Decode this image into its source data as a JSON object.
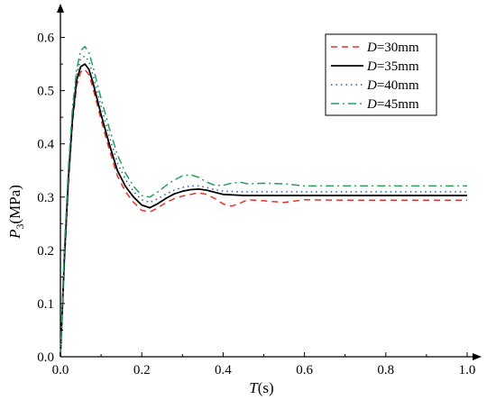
{
  "chart_data": {
    "type": "line",
    "xlabel": {
      "var": "T",
      "unit": "(s)"
    },
    "ylabel": {
      "var": "P",
      "sub": "3",
      "unit": "(MPa)"
    },
    "xlim": [
      0,
      1.0
    ],
    "ylim": [
      0,
      0.65
    ],
    "x_ticks": [
      "0.0",
      "0.2",
      "0.4",
      "0.6",
      "0.8",
      "1.0"
    ],
    "y_ticks": [
      "0.0",
      "0.1",
      "0.2",
      "0.3",
      "0.4",
      "0.5",
      "0.6"
    ],
    "grid": false,
    "legend_position": "top-right",
    "series": [
      {
        "name_var": "D",
        "name_val": "=30mm",
        "color": "#e8312a",
        "dash": "7,5",
        "points": [
          [
            0,
            0
          ],
          [
            0.01,
            0.18
          ],
          [
            0.02,
            0.33
          ],
          [
            0.03,
            0.44
          ],
          [
            0.04,
            0.51
          ],
          [
            0.05,
            0.535
          ],
          [
            0.06,
            0.54
          ],
          [
            0.07,
            0.53
          ],
          [
            0.08,
            0.505
          ],
          [
            0.1,
            0.445
          ],
          [
            0.12,
            0.39
          ],
          [
            0.14,
            0.34
          ],
          [
            0.16,
            0.31
          ],
          [
            0.18,
            0.29
          ],
          [
            0.2,
            0.275
          ],
          [
            0.22,
            0.272
          ],
          [
            0.24,
            0.28
          ],
          [
            0.26,
            0.29
          ],
          [
            0.28,
            0.297
          ],
          [
            0.3,
            0.302
          ],
          [
            0.32,
            0.305
          ],
          [
            0.34,
            0.308
          ],
          [
            0.36,
            0.305
          ],
          [
            0.38,
            0.297
          ],
          [
            0.4,
            0.287
          ],
          [
            0.42,
            0.283
          ],
          [
            0.44,
            0.288
          ],
          [
            0.46,
            0.295
          ],
          [
            0.5,
            0.293
          ],
          [
            0.55,
            0.29
          ],
          [
            0.6,
            0.295
          ],
          [
            0.7,
            0.294
          ],
          [
            0.8,
            0.294
          ],
          [
            0.9,
            0.294
          ],
          [
            1.0,
            0.294
          ]
        ]
      },
      {
        "name_var": "D",
        "name_val": "=35mm",
        "color": "#000000",
        "dash": "",
        "points": [
          [
            0,
            0
          ],
          [
            0.01,
            0.19
          ],
          [
            0.02,
            0.34
          ],
          [
            0.03,
            0.45
          ],
          [
            0.04,
            0.52
          ],
          [
            0.05,
            0.545
          ],
          [
            0.06,
            0.55
          ],
          [
            0.07,
            0.54
          ],
          [
            0.08,
            0.515
          ],
          [
            0.1,
            0.455
          ],
          [
            0.12,
            0.4
          ],
          [
            0.14,
            0.35
          ],
          [
            0.16,
            0.32
          ],
          [
            0.18,
            0.3
          ],
          [
            0.2,
            0.285
          ],
          [
            0.22,
            0.28
          ],
          [
            0.24,
            0.288
          ],
          [
            0.26,
            0.298
          ],
          [
            0.28,
            0.306
          ],
          [
            0.3,
            0.311
          ],
          [
            0.32,
            0.314
          ],
          [
            0.34,
            0.315
          ],
          [
            0.36,
            0.313
          ],
          [
            0.38,
            0.309
          ],
          [
            0.4,
            0.305
          ],
          [
            0.45,
            0.303
          ],
          [
            0.5,
            0.303
          ],
          [
            0.6,
            0.303
          ],
          [
            0.7,
            0.303
          ],
          [
            0.8,
            0.303
          ],
          [
            0.9,
            0.303
          ],
          [
            1.0,
            0.303
          ]
        ]
      },
      {
        "name_var": "D",
        "name_val": "=40mm",
        "color": "#1f5fb5",
        "dash": "1.5,4",
        "points": [
          [
            0,
            0
          ],
          [
            0.01,
            0.2
          ],
          [
            0.02,
            0.35
          ],
          [
            0.03,
            0.46
          ],
          [
            0.04,
            0.53
          ],
          [
            0.05,
            0.56
          ],
          [
            0.06,
            0.565
          ],
          [
            0.07,
            0.555
          ],
          [
            0.08,
            0.53
          ],
          [
            0.1,
            0.47
          ],
          [
            0.12,
            0.415
          ],
          [
            0.14,
            0.365
          ],
          [
            0.16,
            0.333
          ],
          [
            0.18,
            0.31
          ],
          [
            0.2,
            0.295
          ],
          [
            0.22,
            0.29
          ],
          [
            0.24,
            0.297
          ],
          [
            0.26,
            0.306
          ],
          [
            0.28,
            0.313
          ],
          [
            0.3,
            0.318
          ],
          [
            0.32,
            0.321
          ],
          [
            0.34,
            0.321
          ],
          [
            0.36,
            0.318
          ],
          [
            0.38,
            0.314
          ],
          [
            0.4,
            0.311
          ],
          [
            0.45,
            0.31
          ],
          [
            0.5,
            0.31
          ],
          [
            0.6,
            0.31
          ],
          [
            0.7,
            0.31
          ],
          [
            0.8,
            0.31
          ],
          [
            0.9,
            0.31
          ],
          [
            1.0,
            0.31
          ]
        ]
      },
      {
        "name_var": "D",
        "name_val": "=45mm",
        "color": "#2a9d5c",
        "dash": "9,4,2,4",
        "points": [
          [
            0,
            0
          ],
          [
            0.01,
            0.21
          ],
          [
            0.02,
            0.36
          ],
          [
            0.03,
            0.47
          ],
          [
            0.04,
            0.54
          ],
          [
            0.05,
            0.575
          ],
          [
            0.06,
            0.583
          ],
          [
            0.07,
            0.572
          ],
          [
            0.08,
            0.545
          ],
          [
            0.1,
            0.485
          ],
          [
            0.12,
            0.43
          ],
          [
            0.14,
            0.38
          ],
          [
            0.16,
            0.345
          ],
          [
            0.18,
            0.32
          ],
          [
            0.2,
            0.303
          ],
          [
            0.22,
            0.3
          ],
          [
            0.24,
            0.31
          ],
          [
            0.26,
            0.322
          ],
          [
            0.28,
            0.332
          ],
          [
            0.3,
            0.34
          ],
          [
            0.32,
            0.342
          ],
          [
            0.34,
            0.337
          ],
          [
            0.36,
            0.328
          ],
          [
            0.38,
            0.322
          ],
          [
            0.4,
            0.322
          ],
          [
            0.42,
            0.326
          ],
          [
            0.44,
            0.328
          ],
          [
            0.46,
            0.325
          ],
          [
            0.5,
            0.326
          ],
          [
            0.55,
            0.325
          ],
          [
            0.6,
            0.321
          ],
          [
            0.7,
            0.321
          ],
          [
            0.8,
            0.321
          ],
          [
            0.9,
            0.321
          ],
          [
            1.0,
            0.321
          ]
        ]
      }
    ]
  }
}
